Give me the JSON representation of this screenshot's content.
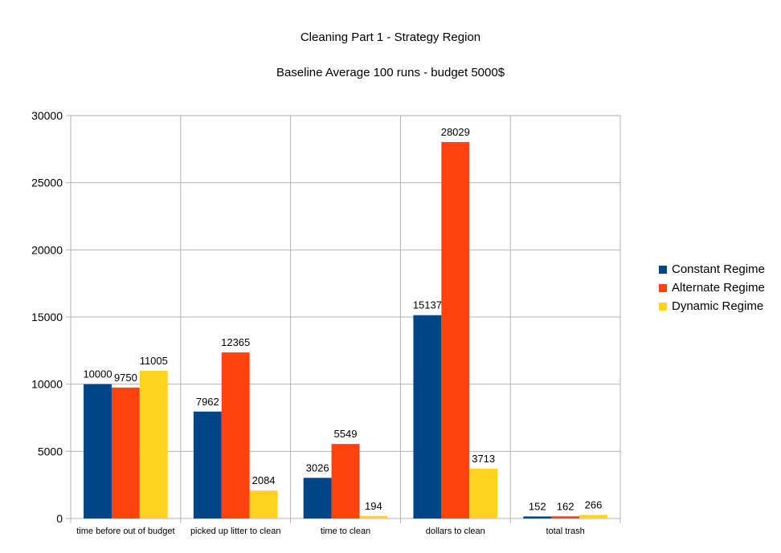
{
  "chart_data": {
    "type": "bar",
    "title": "Cleaning Part 1 - Strategy Region",
    "subtitle": "Baseline Average 100 runs - budget 5000$",
    "categories": [
      "time before out of budget",
      "picked up litter to clean",
      "time to clean",
      "dollars to clean",
      "total trash"
    ],
    "series": [
      {
        "name": "Constant Regime",
        "color": "#004586",
        "values": [
          10000,
          7962,
          3026,
          15137,
          152
        ]
      },
      {
        "name": "Alternate Regime",
        "color": "#ff420e",
        "values": [
          9750,
          12365,
          5549,
          28029,
          162
        ]
      },
      {
        "name": "Dynamic Regime",
        "color": "#ffd320",
        "values": [
          11005,
          2084,
          194,
          3713,
          266
        ]
      }
    ],
    "ylim": [
      0,
      30000
    ],
    "yticks": [
      0,
      5000,
      10000,
      15000,
      20000,
      25000,
      30000
    ],
    "grid": true,
    "legend_position": "right"
  }
}
